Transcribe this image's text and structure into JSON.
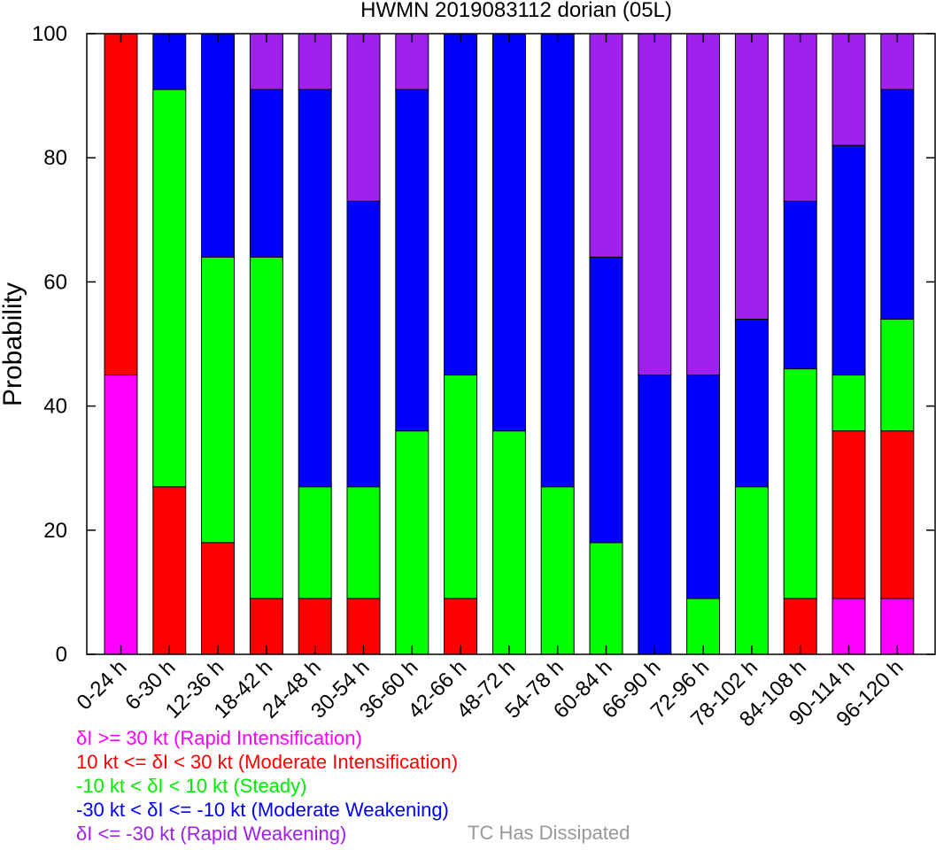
{
  "chart_data": {
    "type": "bar",
    "stacked": true,
    "title": "HWMN 2019083112 dorian (05L)",
    "ylabel": "Probability",
    "xlabel": "",
    "ylim": [
      0,
      100
    ],
    "yticks": [
      "0",
      "20",
      "40",
      "60",
      "80",
      "100"
    ],
    "grid": false,
    "legend_position": "bottom-left",
    "categories": [
      "0-24 h",
      "6-30 h",
      "12-36 h",
      "18-42 h",
      "24-48 h",
      "30-54 h",
      "36-60 h",
      "42-66 h",
      "48-72 h",
      "54-78 h",
      "60-84 h",
      "66-90 h",
      "72-96 h",
      "78-102 h",
      "84-108 h",
      "90-114 h",
      "96-120 h"
    ],
    "series": [
      {
        "name": "δI >= 30 kt (Rapid Intensification)",
        "color": "#ff00ff",
        "values": [
          45,
          0,
          0,
          0,
          0,
          0,
          0,
          0,
          0,
          0,
          0,
          0,
          0,
          0,
          0,
          9,
          9
        ]
      },
      {
        "name": "10 kt <= δI < 30 kt (Moderate Intensification)",
        "color": "#ff0000",
        "values": [
          55,
          27,
          18,
          9,
          9,
          9,
          0,
          9,
          0,
          0,
          0,
          0,
          0,
          0,
          9,
          27,
          27
        ]
      },
      {
        "name": "-10 kt < δI < 10 kt (Steady)",
        "color": "#00ff00",
        "values": [
          0,
          64,
          46,
          55,
          18,
          18,
          36,
          36,
          36,
          27,
          18,
          0,
          9,
          27,
          37,
          9,
          18
        ]
      },
      {
        "name": "-30 kt < δI <= -10 kt (Moderate Weakening)",
        "color": "#0000ff",
        "values": [
          0,
          9,
          36,
          27,
          64,
          46,
          55,
          55,
          64,
          73,
          46,
          45,
          36,
          27,
          27,
          37,
          37
        ]
      },
      {
        "name": "δI <= -30 kt (Rapid Weakening)",
        "color": "#a020f0",
        "values": [
          0,
          0,
          0,
          9,
          9,
          27,
          9,
          0,
          0,
          0,
          36,
          55,
          55,
          46,
          27,
          18,
          9
        ]
      }
    ],
    "extra_legend": {
      "label": "TC Has Dissipated",
      "color": "#999999"
    }
  }
}
